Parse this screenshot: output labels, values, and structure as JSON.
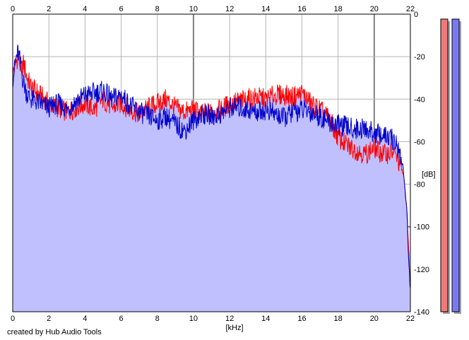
{
  "footer": {
    "credit": "created by Hub Audio Tools"
  },
  "chart_data": {
    "type": "area",
    "xlabel": "[kHz]",
    "ylabel": "[dB]",
    "xlim": [
      0,
      22
    ],
    "ylim": [
      -140,
      0
    ],
    "x_ticks": [
      "0",
      "2",
      "4",
      "6",
      "8",
      "10",
      "12",
      "14",
      "16",
      "18",
      "20",
      "22"
    ],
    "y_ticks": [
      "0",
      "-20",
      "-40",
      "-60",
      "-80",
      "-100",
      "-120",
      "-140"
    ],
    "grid": true,
    "colors": {
      "fill": "#c0c0ff",
      "channel_a": "#ff0000",
      "channel_b": "#0000cc",
      "grid": "#b4b4b4",
      "major_grid": "#808080",
      "meter_left_fill": "#f07a7a",
      "meter_right_fill": "#7a7af0"
    },
    "series": [
      {
        "x": [
          0,
          0.1,
          0.2,
          0.3,
          0.4,
          0.5,
          0.6,
          0.8,
          1,
          1.5,
          2,
          2.5,
          3,
          3.5,
          4,
          4.5,
          5,
          5.5,
          6,
          6.5,
          7,
          7.5,
          8,
          8.5,
          9,
          9.5,
          10,
          10.5,
          11,
          11.5,
          12,
          12.5,
          13,
          13.5,
          14,
          14.5,
          15,
          15.5,
          16,
          16.5,
          17,
          17.5,
          18,
          18.5,
          19,
          19.5,
          20,
          20.5,
          21,
          21.3,
          21.6,
          21.8,
          21.9,
          22
        ],
        "values": [
          -28,
          -25,
          -22,
          -20,
          -24,
          -26,
          -23,
          -30,
          -34,
          -38,
          -42,
          -44,
          -46,
          -44,
          -42,
          -45,
          -40,
          -44,
          -42,
          -45,
          -47,
          -44,
          -42,
          -40,
          -44,
          -46,
          -45,
          -47,
          -46,
          -45,
          -42,
          -41,
          -40,
          -39,
          -40,
          -38,
          -38,
          -39,
          -37,
          -42,
          -45,
          -49,
          -58,
          -62,
          -64,
          -66,
          -63,
          -66,
          -65,
          -68,
          -75,
          -90,
          -110,
          -128
        ]
      },
      {
        "x": [
          0,
          0.1,
          0.2,
          0.3,
          0.4,
          0.5,
          0.6,
          0.8,
          1,
          1.5,
          2,
          2.5,
          3,
          3.5,
          4,
          4.5,
          5,
          5.5,
          6,
          6.5,
          7,
          7.5,
          8,
          8.5,
          9,
          9.5,
          10,
          10.5,
          11,
          11.5,
          12,
          12.5,
          13,
          13.5,
          14,
          14.5,
          15,
          15.5,
          16,
          16.5,
          17,
          17.5,
          18,
          18.5,
          19,
          19.5,
          20,
          20.5,
          21,
          21.3,
          21.6,
          21.8,
          21.9,
          22
        ],
        "values": [
          -30,
          -26,
          -20,
          -18,
          -22,
          -28,
          -32,
          -38,
          -40,
          -42,
          -44,
          -42,
          -45,
          -41,
          -38,
          -37,
          -36,
          -40,
          -38,
          -43,
          -46,
          -48,
          -50,
          -48,
          -52,
          -55,
          -50,
          -47,
          -48,
          -47,
          -44,
          -44,
          -45,
          -46,
          -45,
          -47,
          -49,
          -46,
          -45,
          -46,
          -48,
          -51,
          -52,
          -53,
          -54,
          -54,
          -56,
          -57,
          -59,
          -62,
          -72,
          -92,
          -115,
          -130
        ]
      }
    ],
    "meters": {
      "left": 1.0,
      "right": 1.0
    }
  }
}
